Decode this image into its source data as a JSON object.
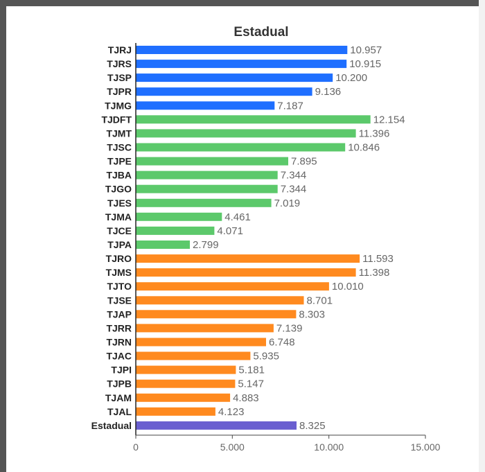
{
  "chart_data": {
    "type": "bar",
    "orientation": "horizontal",
    "title": "Estadual",
    "categories": [
      "TJRJ",
      "TJRS",
      "TJSP",
      "TJPR",
      "TJMG",
      "TJDFT",
      "TJMT",
      "TJSC",
      "TJPE",
      "TJBA",
      "TJGO",
      "TJES",
      "TJMA",
      "TJCE",
      "TJPA",
      "TJRO",
      "TJMS",
      "TJTO",
      "TJSE",
      "TJAP",
      "TJRR",
      "TJRN",
      "TJAC",
      "TJPI",
      "TJPB",
      "TJAM",
      "TJAL",
      "Estadual"
    ],
    "values": [
      10957,
      10915,
      10200,
      9136,
      7187,
      12154,
      11396,
      10846,
      7895,
      7344,
      7344,
      7019,
      4461,
      4071,
      2799,
      11593,
      11398,
      10010,
      8701,
      8303,
      7139,
      6748,
      5935,
      5181,
      5147,
      4883,
      4123,
      8325
    ],
    "value_labels": [
      "10.957",
      "10.915",
      "10.200",
      "9.136",
      "7.187",
      "12.154",
      "11.396",
      "10.846",
      "7.895",
      "7.344",
      "7.344",
      "7.019",
      "4.461",
      "4.071",
      "2.799",
      "11.593",
      "11.398",
      "10.010",
      "8.701",
      "8.303",
      "7.139",
      "6.748",
      "5.935",
      "5.181",
      "5.147",
      "4.883",
      "4.123",
      "8.325"
    ],
    "bar_colors": [
      "#1f6fff",
      "#1f6fff",
      "#1f6fff",
      "#1f6fff",
      "#1f6fff",
      "#5cc96b",
      "#5cc96b",
      "#5cc96b",
      "#5cc96b",
      "#5cc96b",
      "#5cc96b",
      "#5cc96b",
      "#5cc96b",
      "#5cc96b",
      "#5cc96b",
      "#ff8a1f",
      "#ff8a1f",
      "#ff8a1f",
      "#ff8a1f",
      "#ff8a1f",
      "#ff8a1f",
      "#ff8a1f",
      "#ff8a1f",
      "#ff8a1f",
      "#ff8a1f",
      "#ff8a1f",
      "#ff8a1f",
      "#6a5fd0"
    ],
    "xlim": [
      0,
      15000
    ],
    "xticks": [
      0,
      5000,
      10000,
      15000
    ],
    "xtick_labels": [
      "0",
      "5.000",
      "10.000",
      "15.000"
    ],
    "xlabel": "",
    "ylabel": "",
    "grid": false,
    "legend": "none"
  }
}
